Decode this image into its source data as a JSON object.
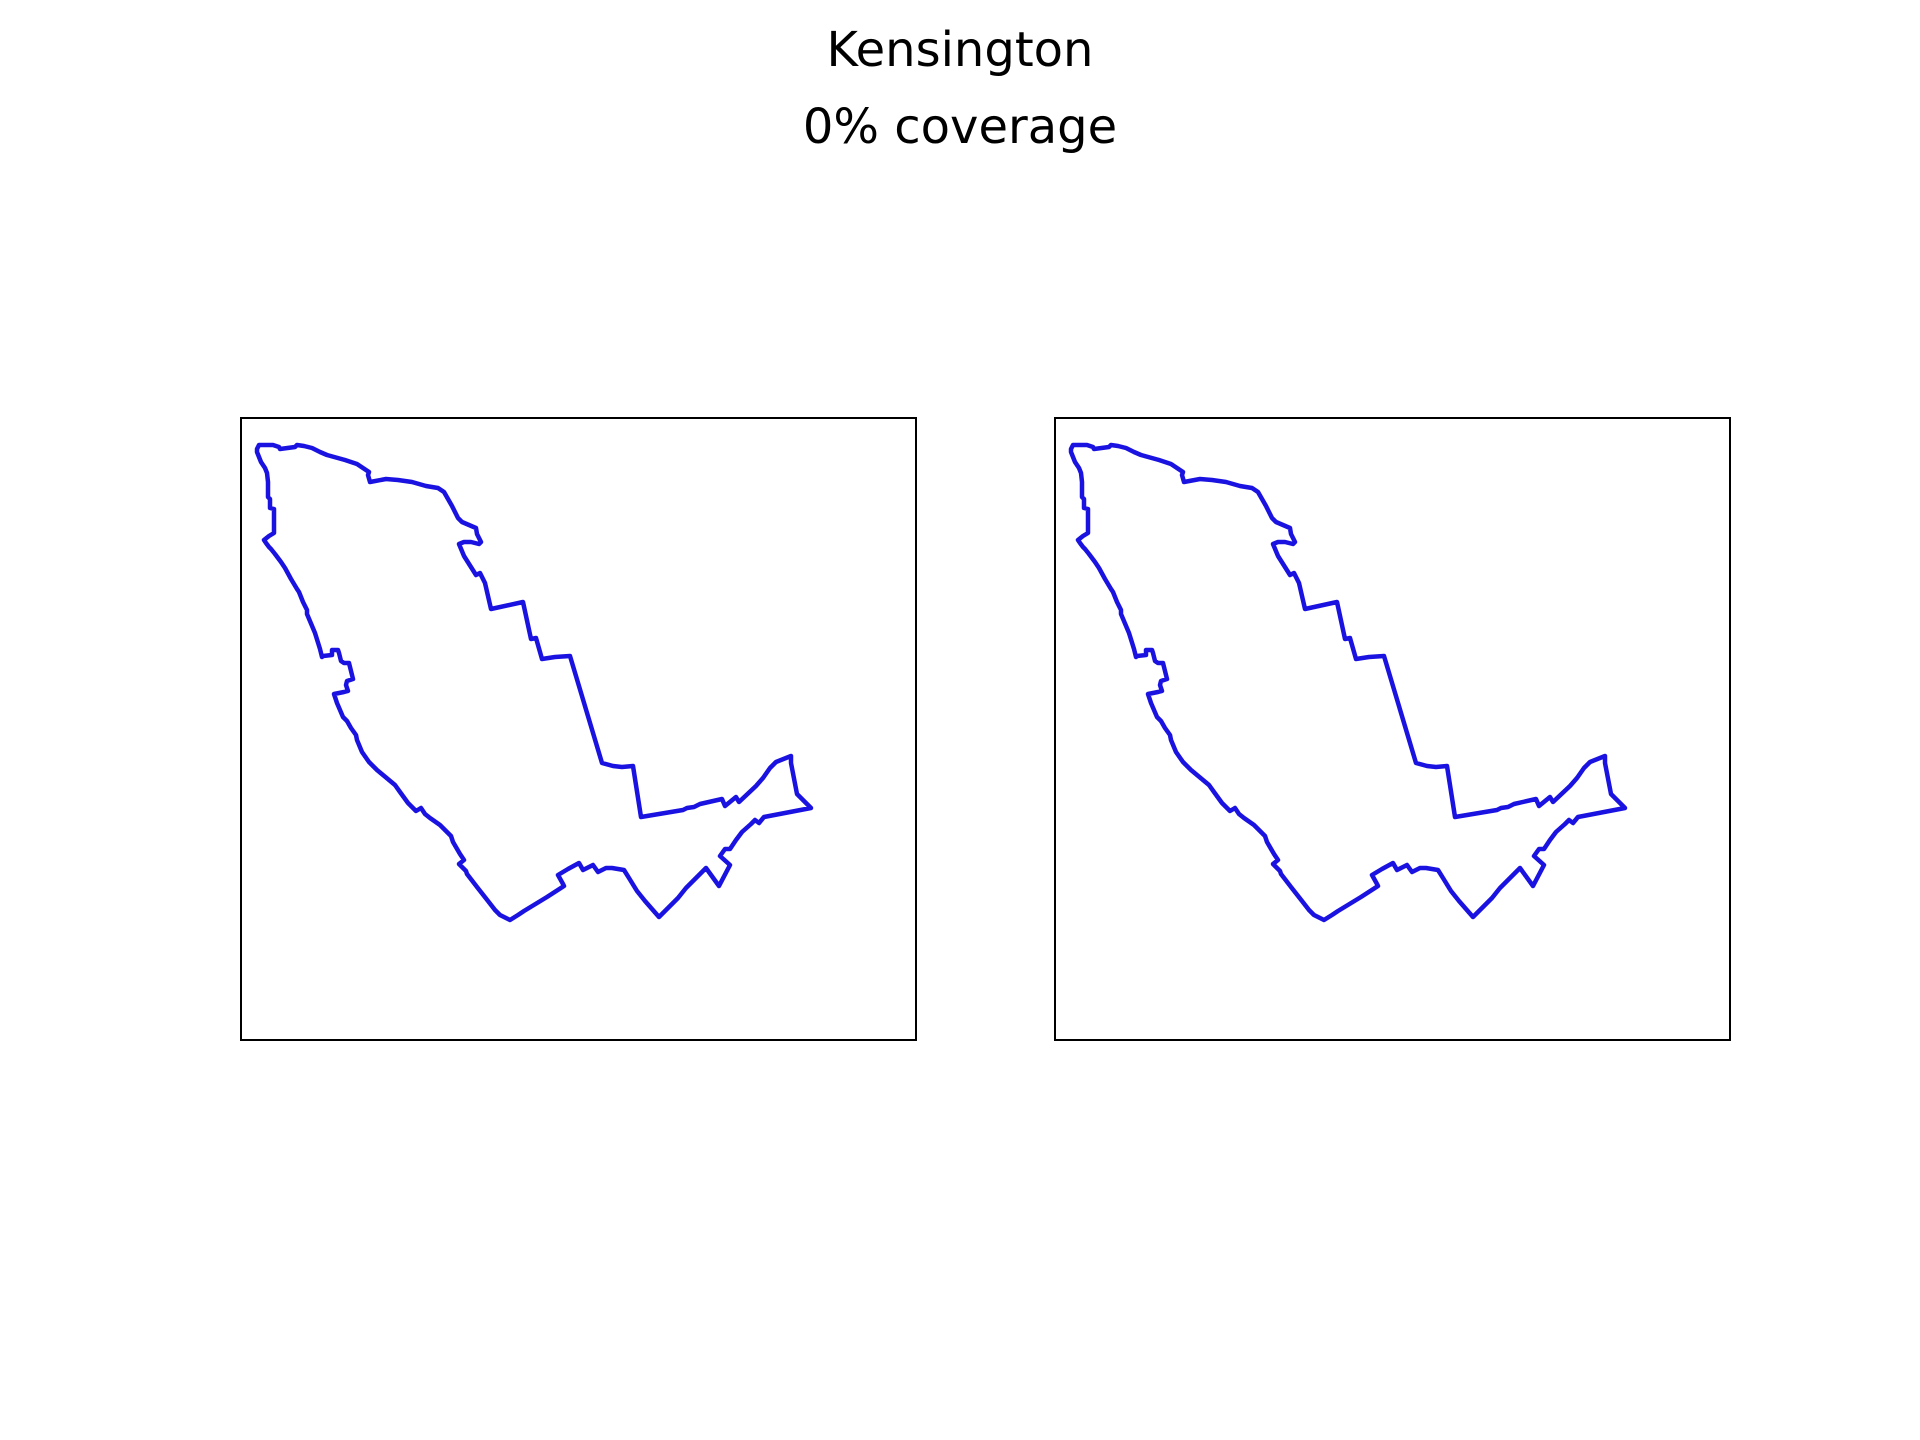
{
  "figure": {
    "title": "Kensington",
    "subtitle": "0% coverage"
  },
  "colors": {
    "boundary": "#1a12e0",
    "frame": "#000000",
    "background": "#ffffff"
  },
  "panels": [
    {
      "region": "Kensington"
    },
    {
      "region": "Kensington"
    }
  ]
}
